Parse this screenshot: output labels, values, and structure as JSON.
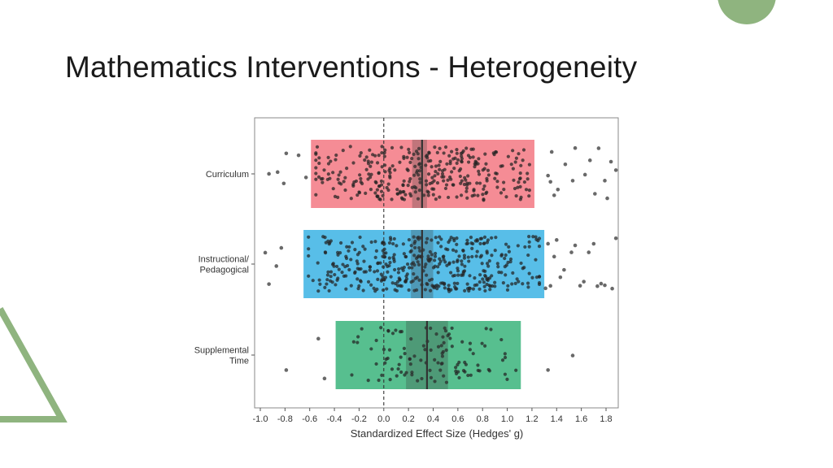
{
  "slide": {
    "title": "Mathematics Interventions - Heterogeneity",
    "accent_color": "#8fb47f"
  },
  "chart_data": {
    "type": "scatter",
    "title": "",
    "xlabel": "Standardized Effect Size (Hedges' g)",
    "ylabel": "",
    "xlim": [
      -1.05,
      1.9
    ],
    "x_ticks": [
      -1.0,
      -0.8,
      -0.6,
      -0.4,
      -0.2,
      0.0,
      0.2,
      0.4,
      0.6,
      0.8,
      1.0,
      1.2,
      1.4,
      1.6,
      1.8
    ],
    "x_tick_labels": [
      "-1.0",
      "-0.8",
      "-0.6",
      "-0.4",
      "-0.2",
      "0.0",
      "0.2",
      "0.4",
      "0.6",
      "0.8",
      "1.0",
      "1.2",
      "1.4",
      "1.6",
      "1.8"
    ],
    "reference_line_x": 0.0,
    "grid": false,
    "categories": [
      {
        "label_lines": [
          "Curriculum"
        ],
        "color": "#f4808a",
        "interval": [
          -0.59,
          1.22
        ],
        "ci": [
          0.23,
          0.35
        ],
        "mean": 0.31,
        "n_points": 330,
        "outliers": [
          -0.93,
          -0.86,
          -0.81,
          -0.79,
          -0.69,
          -0.63,
          1.33,
          1.35,
          1.36,
          1.38,
          1.41,
          1.47,
          1.53,
          1.55,
          1.63,
          1.67,
          1.71,
          1.74,
          1.79,
          1.81,
          1.84,
          1.88
        ]
      },
      {
        "label_lines": [
          "Instructional/",
          "Pedagogical"
        ],
        "color": "#46b7e6",
        "interval": [
          -0.65,
          1.3
        ],
        "ci": [
          0.22,
          0.4
        ],
        "mean": 0.31,
        "n_points": 420,
        "outliers": [
          -0.96,
          -0.93,
          -0.87,
          -0.83,
          1.31,
          1.33,
          1.35,
          1.38,
          1.4,
          1.43,
          1.46,
          1.52,
          1.55,
          1.59,
          1.62,
          1.66,
          1.7,
          1.73,
          1.76,
          1.79,
          1.85,
          1.88
        ]
      },
      {
        "label_lines": [
          "Supplemental",
          "Time"
        ],
        "color": "#45b883",
        "interval": [
          -0.39,
          1.11
        ],
        "ci": [
          0.18,
          0.52
        ],
        "mean": 0.35,
        "n_points": 110,
        "outliers": [
          -0.79,
          -0.53,
          -0.48,
          1.33,
          1.53
        ]
      }
    ]
  }
}
